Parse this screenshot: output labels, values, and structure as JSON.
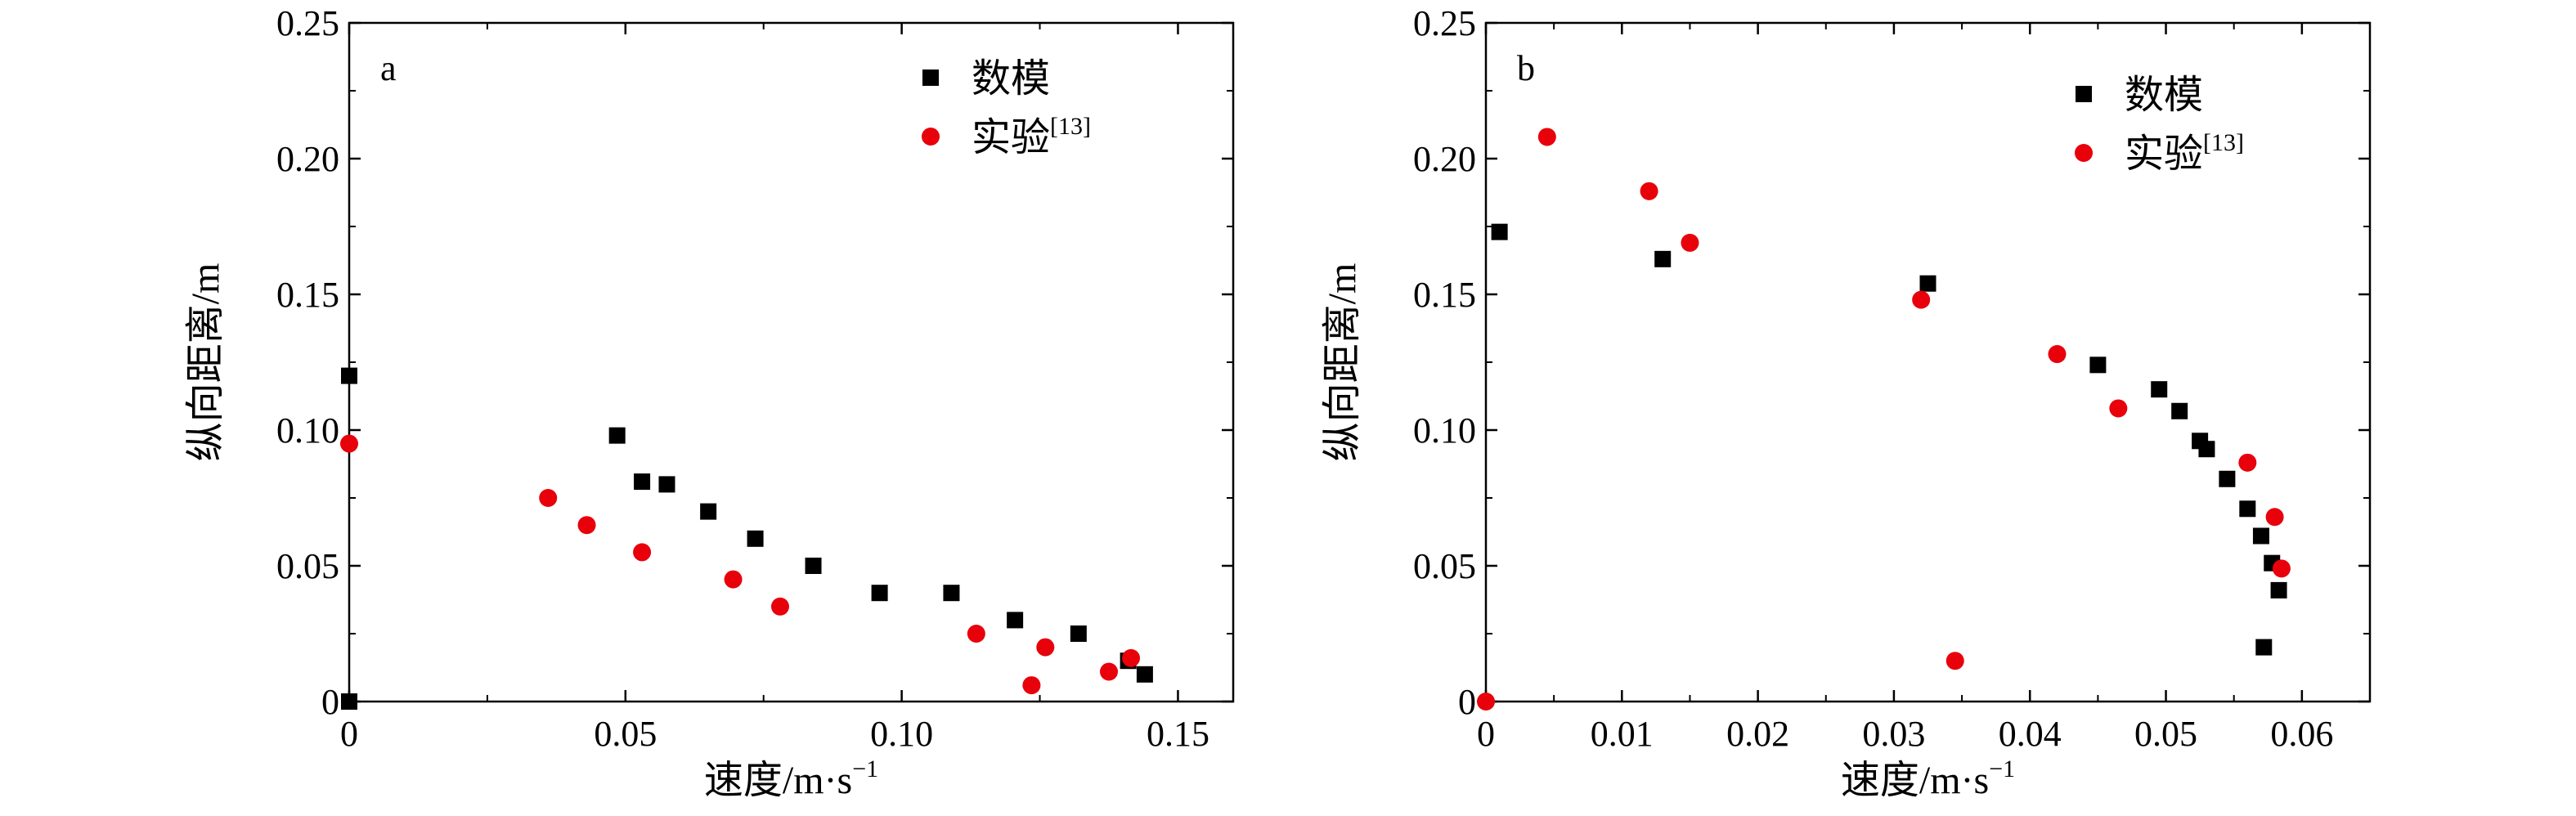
{
  "chart_data": [
    {
      "type": "scatter",
      "panel_label": "a",
      "xlabel": "速度/m·s",
      "xlabel_sup": "−1",
      "ylabel": "纵向距离/m",
      "xlim": [
        0,
        0.16
      ],
      "ylim": [
        0,
        0.25
      ],
      "x_ticks": [
        0,
        0.05,
        0.1,
        0.15
      ],
      "x_tick_labels": [
        "0",
        "0.05",
        "0.10",
        "0.15"
      ],
      "y_ticks": [
        0,
        0.05,
        0.1,
        0.15,
        0.2,
        0.25
      ],
      "y_tick_labels": [
        "0",
        "0.05",
        "0.10",
        "0.15",
        "0.20",
        "0.25"
      ],
      "legend_position": "top-right",
      "series": [
        {
          "name": "数模",
          "name_sup": "",
          "marker": "square",
          "color": "#000000",
          "points": [
            {
              "x": 0.0,
              "y": 0.12
            },
            {
              "x": 0.0,
              "y": 0.0
            },
            {
              "x": 0.0485,
              "y": 0.098
            },
            {
              "x": 0.053,
              "y": 0.081
            },
            {
              "x": 0.0575,
              "y": 0.08
            },
            {
              "x": 0.065,
              "y": 0.07
            },
            {
              "x": 0.0735,
              "y": 0.06
            },
            {
              "x": 0.084,
              "y": 0.05
            },
            {
              "x": 0.096,
              "y": 0.04
            },
            {
              "x": 0.109,
              "y": 0.04
            },
            {
              "x": 0.1205,
              "y": 0.03
            },
            {
              "x": 0.132,
              "y": 0.025
            },
            {
              "x": 0.141,
              "y": 0.015
            },
            {
              "x": 0.144,
              "y": 0.01
            }
          ]
        },
        {
          "name": "实验",
          "name_sup": "[13]",
          "marker": "circle",
          "color": "#e8000b",
          "points": [
            {
              "x": 0.0,
              "y": 0.095
            },
            {
              "x": 0.036,
              "y": 0.075
            },
            {
              "x": 0.043,
              "y": 0.065
            },
            {
              "x": 0.053,
              "y": 0.055
            },
            {
              "x": 0.0695,
              "y": 0.045
            },
            {
              "x": 0.078,
              "y": 0.035
            },
            {
              "x": 0.1135,
              "y": 0.025
            },
            {
              "x": 0.1235,
              "y": 0.006
            },
            {
              "x": 0.126,
              "y": 0.02
            },
            {
              "x": 0.1375,
              "y": 0.011
            },
            {
              "x": 0.1415,
              "y": 0.016
            }
          ]
        }
      ]
    },
    {
      "type": "scatter",
      "panel_label": "b",
      "xlabel": "速度/m·s",
      "xlabel_sup": "−1",
      "ylabel": "纵向距离/m",
      "xlim": [
        0,
        0.065
      ],
      "ylim": [
        0,
        0.25
      ],
      "x_ticks": [
        0,
        0.01,
        0.02,
        0.03,
        0.04,
        0.05,
        0.06
      ],
      "x_tick_labels": [
        "0",
        "0.01",
        "0.02",
        "0.03",
        "0.04",
        "0.05",
        "0.06"
      ],
      "y_ticks": [
        0,
        0.05,
        0.1,
        0.15,
        0.2,
        0.25
      ],
      "y_tick_labels": [
        "0",
        "0.05",
        "0.10",
        "0.15",
        "0.20",
        "0.25"
      ],
      "legend_position": "top-right",
      "series": [
        {
          "name": "数模",
          "name_sup": "",
          "marker": "square",
          "color": "#000000",
          "points": [
            {
              "x": 0.001,
              "y": 0.173
            },
            {
              "x": 0.013,
              "y": 0.163
            },
            {
              "x": 0.0325,
              "y": 0.154
            },
            {
              "x": 0.045,
              "y": 0.124
            },
            {
              "x": 0.0495,
              "y": 0.115
            },
            {
              "x": 0.051,
              "y": 0.107
            },
            {
              "x": 0.0525,
              "y": 0.096
            },
            {
              "x": 0.053,
              "y": 0.093
            },
            {
              "x": 0.0545,
              "y": 0.082
            },
            {
              "x": 0.056,
              "y": 0.071
            },
            {
              "x": 0.057,
              "y": 0.061
            },
            {
              "x": 0.0578,
              "y": 0.051
            },
            {
              "x": 0.0583,
              "y": 0.041
            },
            {
              "x": 0.0572,
              "y": 0.02
            }
          ]
        },
        {
          "name": "实验",
          "name_sup": "[13]",
          "marker": "circle",
          "color": "#e8000b",
          "points": [
            {
              "x": 0.0,
              "y": 0.0
            },
            {
              "x": 0.0045,
              "y": 0.208
            },
            {
              "x": 0.012,
              "y": 0.188
            },
            {
              "x": 0.015,
              "y": 0.169
            },
            {
              "x": 0.032,
              "y": 0.148
            },
            {
              "x": 0.0345,
              "y": 0.015
            },
            {
              "x": 0.042,
              "y": 0.128
            },
            {
              "x": 0.0465,
              "y": 0.108
            },
            {
              "x": 0.056,
              "y": 0.088
            },
            {
              "x": 0.058,
              "y": 0.068
            },
            {
              "x": 0.0585,
              "y": 0.049
            }
          ]
        }
      ]
    }
  ]
}
